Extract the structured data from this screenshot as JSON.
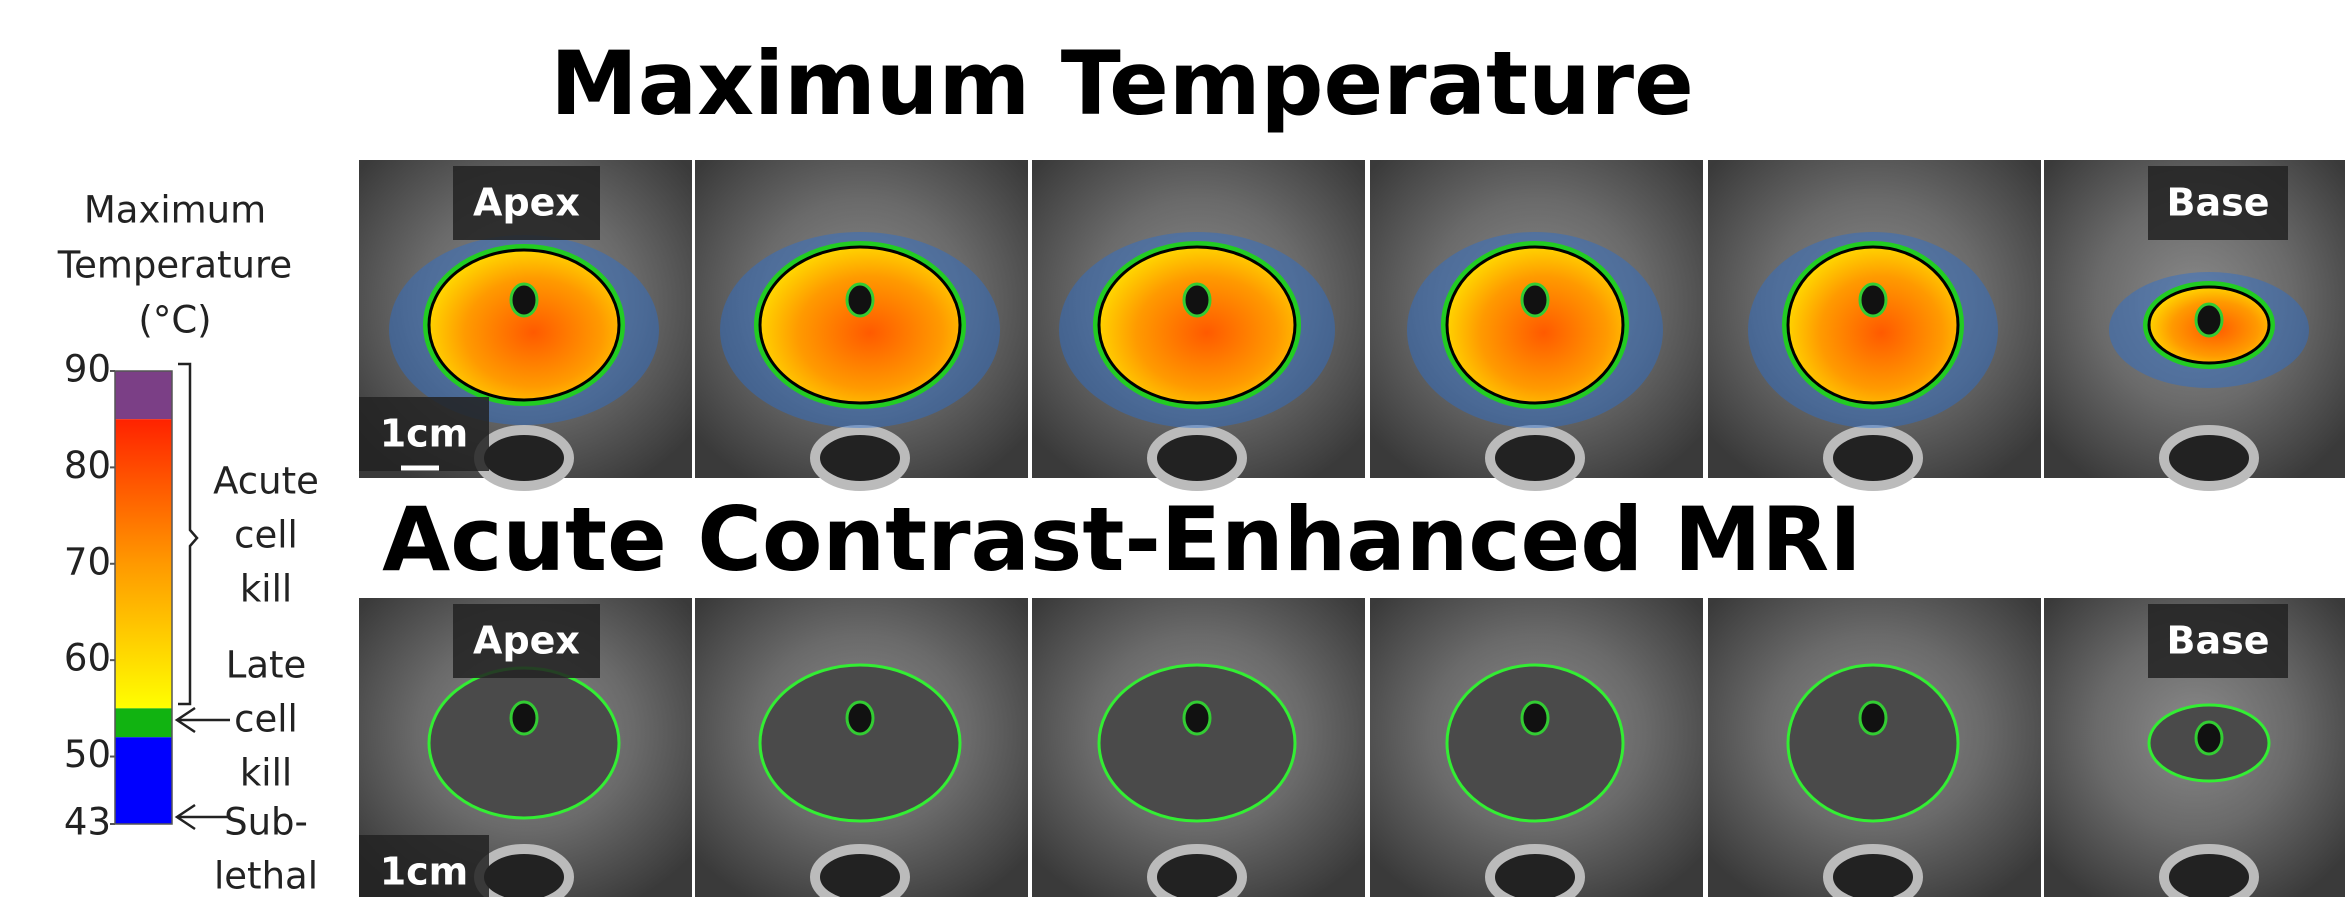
{
  "titles": [
    "Maximum Temperature",
    "Acute Contrast-Enhanced MRI"
  ],
  "panel_labels": {
    "first": "Apex",
    "last": "Base",
    "scale": "1cm"
  },
  "colorbar": {
    "title": [
      "Maximum",
      "Temperature",
      "(°C)"
    ],
    "lim": [
      43,
      90
    ],
    "ticks": [
      90,
      80,
      70,
      60,
      50,
      43
    ],
    "bands": [
      {
        "from": 85,
        "to": 90,
        "colors": [
          "#7b3f86"
        ]
      },
      {
        "from": 55,
        "to": 85,
        "colors": [
          "#ffff00",
          "#ff9900",
          "#ff2200"
        ]
      },
      {
        "from": 52,
        "to": 55,
        "colors": [
          "#11b311"
        ]
      },
      {
        "from": 43,
        "to": 52,
        "colors": [
          "#0000ff"
        ]
      }
    ],
    "zones": [
      [
        "Acute",
        "cell",
        "kill"
      ],
      [
        "Late",
        "cell",
        "kill"
      ],
      [
        "Sub-",
        "lethal"
      ]
    ]
  }
}
